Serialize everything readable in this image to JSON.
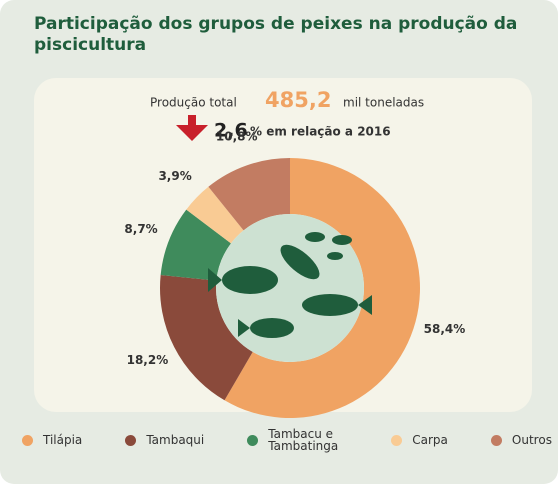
{
  "chart_data": {
    "type": "donut",
    "title": "Participação dos grupos de peixes na produção da piscicultura",
    "annotations": {
      "total_label": "Produção total",
      "total_value": "485,2",
      "total_unit": "mil toneladas",
      "change_value": "2,6",
      "change_text": "% em relação a 2016"
    },
    "categories": [
      "Tilápia",
      "Tambaqui",
      "Tambacu e Tambatinga",
      "Carpa",
      "Outros"
    ],
    "values": [
      58.4,
      18.2,
      8.7,
      3.9,
      10.8
    ],
    "value_labels": [
      "58,4%",
      "18,2%",
      "8,7%",
      "3,9%",
      "10,8%"
    ],
    "colors": [
      "#f0a363",
      "#8a4a3b",
      "#3f8b5c",
      "#f9cb94",
      "#c27c62"
    ]
  }
}
